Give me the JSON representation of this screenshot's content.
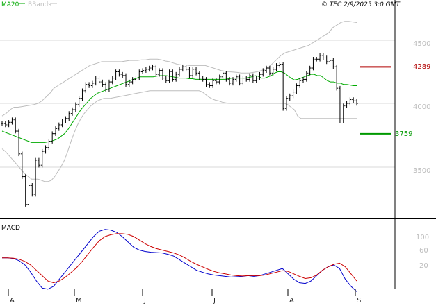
{
  "header": {
    "legend": [
      {
        "label": "MA20",
        "color": "#00aa00"
      },
      {
        "label": "BBands",
        "color": "#bdbdbd"
      }
    ],
    "watermark": "© TEC 2/9/2025 3:0 GMT"
  },
  "chart_data": [
    {
      "type": "ohlc",
      "yaxis": {
        "ticks": [
          "4500",
          "4000",
          "3500"
        ],
        "tick_values": [
          4500,
          4000,
          3500
        ],
        "ylim": [
          3300,
          4700
        ]
      },
      "xaxis": {
        "months": [
          "A",
          "M",
          "J",
          "J",
          "A",
          "S"
        ]
      },
      "grid": true,
      "levels": [
        {
          "label": "4289",
          "value": 4289,
          "color": "#b00000"
        },
        {
          "label": "3759",
          "value": 3759,
          "color": "#009900"
        }
      ],
      "series": [
        {
          "name": "MA20",
          "color": "#00aa00"
        },
        {
          "name": "BBands",
          "color": "#bdbdbd"
        }
      ],
      "close": [
        3840,
        3830,
        3850,
        3870,
        3780,
        3600,
        3420,
        3200,
        3350,
        3280,
        3550,
        3510,
        3620,
        3650,
        3700,
        3760,
        3800,
        3830,
        3860,
        3880,
        3920,
        3950,
        3990,
        4040,
        4100,
        4150,
        4140,
        4160,
        4200,
        4170,
        4150,
        4110,
        4170,
        4200,
        4250,
        4230,
        4220,
        4150,
        4170,
        4190,
        4200,
        4250,
        4260,
        4270,
        4280,
        4290,
        4230,
        4260,
        4200,
        4180,
        4250,
        4190,
        4230,
        4270,
        4290,
        4270,
        4220,
        4270,
        4240,
        4200,
        4190,
        4150,
        4140,
        4180,
        4170,
        4210,
        4240,
        4190,
        4160,
        4190,
        4210,
        4160,
        4200,
        4190,
        4220,
        4180,
        4200,
        4230,
        4260,
        4280,
        4240,
        4270,
        4300,
        4310,
        3960,
        4040,
        4060,
        4090,
        4140,
        4180,
        4190,
        4240,
        4280,
        4350,
        4350,
        4380,
        4360,
        4330,
        4340,
        4290,
        4120,
        3860,
        3980,
        4000,
        4030,
        4020,
        4000
      ],
      "ma20": [
        3780,
        3770,
        3760,
        3750,
        3740,
        3730,
        3720,
        3710,
        3700,
        3690,
        3690,
        3690,
        3690,
        3690,
        3695,
        3700,
        3710,
        3720,
        3740,
        3760,
        3790,
        3830,
        3870,
        3910,
        3950,
        3980,
        4010,
        4040,
        4060,
        4080,
        4090,
        4100,
        4110,
        4120,
        4130,
        4140,
        4150,
        4160,
        4170,
        4180,
        4190,
        4200,
        4210,
        4210,
        4210,
        4210,
        4210,
        4215,
        4220,
        4220,
        4220,
        4215,
        4210,
        4205,
        4200,
        4200,
        4200,
        4195,
        4195,
        4190,
        4190,
        4190,
        4190,
        4190,
        4190,
        4190,
        4190,
        4190,
        4190,
        4195,
        4200,
        4200,
        4200,
        4200,
        4200,
        4205,
        4210,
        4220,
        4215,
        4200,
        4200,
        4210,
        4220,
        4240,
        4250,
        4250,
        4240,
        4220,
        4200,
        4185,
        4190,
        4200,
        4210,
        4220,
        4230,
        4230,
        4220,
        4220,
        4200,
        4180,
        4170,
        4170,
        4160,
        4160,
        4150,
        4150,
        4145,
        4140,
        4140
      ],
      "bb_upper": [
        3900,
        3920,
        3950,
        3970,
        3970,
        3975,
        3980,
        3985,
        3990,
        4000,
        4020,
        4050,
        4080,
        4120,
        4140,
        4160,
        4180,
        4200,
        4220,
        4240,
        4260,
        4280,
        4300,
        4310,
        4320,
        4330,
        4330,
        4330,
        4330,
        4330,
        4330,
        4335,
        4340,
        4340,
        4340,
        4345,
        4345,
        4350,
        4350,
        4350,
        4345,
        4335,
        4330,
        4320,
        4310,
        4305,
        4305,
        4300,
        4300,
        4300,
        4300,
        4300,
        4290,
        4280,
        4270,
        4260,
        4255,
        4250,
        4248,
        4245,
        4240,
        4240,
        4240,
        4245,
        4250,
        4260,
        4270,
        4290,
        4320,
        4350,
        4380,
        4400,
        4410,
        4420,
        4430,
        4440,
        4450,
        4460,
        4480,
        4500,
        4520,
        4540,
        4560,
        4600,
        4620,
        4640,
        4650,
        4650,
        4645,
        4640
      ],
      "bb_lower": [
        3640,
        3620,
        3590,
        3560,
        3530,
        3500,
        3470,
        3440,
        3420,
        3400,
        3400,
        3400,
        3390,
        3380,
        3380,
        3390,
        3420,
        3460,
        3500,
        3550,
        3620,
        3700,
        3770,
        3830,
        3880,
        3920,
        3950,
        3980,
        4000,
        4020,
        4030,
        4040,
        4040,
        4040,
        4045,
        4050,
        4055,
        4060,
        4065,
        4070,
        4075,
        4080,
        4085,
        4090,
        4095,
        4100,
        4100,
        4100,
        4100,
        4100,
        4100,
        4100,
        4100,
        4100,
        4100,
        4100,
        4100,
        4100,
        4100,
        4100,
        4100,
        4090,
        4070,
        4050,
        4035,
        4025,
        4020,
        4010,
        4005,
        4000,
        4000,
        4000,
        4000,
        4000,
        4000,
        4000,
        4000,
        4000,
        4000,
        4000,
        4000,
        4000,
        4000,
        4000,
        4000,
        4000,
        4000,
        3990,
        3970,
        3950,
        3900,
        3880,
        3880,
        3880,
        3880,
        3880,
        3880,
        3880,
        3880,
        3880,
        3880,
        3880,
        3880,
        3880,
        3880,
        3880,
        3880,
        3880,
        3880
      ]
    },
    {
      "type": "line",
      "title": "MACD",
      "yaxis": {
        "ticks": [
          "100",
          "60",
          "20"
        ],
        "tick_values": [
          100,
          60,
          20
        ],
        "ylim": [
          -60,
          150
        ]
      },
      "series": [
        {
          "name": "",
          "color": "#0000cc",
          "values": [
            40,
            40,
            38,
            32,
            20,
            0,
            -25,
            -45,
            -48,
            -40,
            -20,
            0,
            20,
            40,
            60,
            80,
            100,
            115,
            120,
            118,
            112,
            100,
            85,
            70,
            62,
            58,
            56,
            55,
            54,
            50,
            45,
            35,
            25,
            15,
            5,
            0,
            -5,
            -8,
            -10,
            -12,
            -14,
            -13,
            -12,
            -10,
            -12,
            -10,
            -5,
            0,
            5,
            10,
            -5,
            -20,
            -30,
            -32,
            -25,
            -10,
            5,
            15,
            20,
            10,
            -20,
            -40,
            -55
          ]
        },
        {
          "name": "",
          "color": "#cc0000",
          "values": [
            40,
            40,
            39,
            36,
            30,
            20,
            5,
            -10,
            -25,
            -30,
            -25,
            -15,
            -2,
            12,
            30,
            50,
            70,
            88,
            100,
            105,
            108,
            108,
            106,
            100,
            90,
            80,
            72,
            66,
            62,
            58,
            54,
            48,
            40,
            30,
            22,
            15,
            8,
            2,
            -2,
            -5,
            -8,
            -10,
            -11,
            -10,
            -10,
            -10,
            -8,
            -4,
            0,
            4,
            2,
            -5,
            -12,
            -18,
            -16,
            -8,
            5,
            15,
            22,
            25,
            15,
            -5,
            -25
          ]
        }
      ]
    }
  ]
}
